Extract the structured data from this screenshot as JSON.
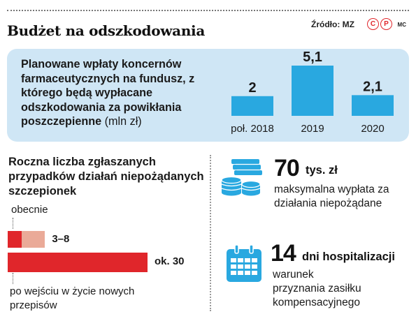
{
  "header": {
    "title": "Budżet na odszkodowania",
    "source": "Źródło: MZ",
    "copyright_marks": [
      "C",
      "P"
    ],
    "author": "MC"
  },
  "panel": {
    "description": "Planowane wpłaty koncernów farmaceutycznych na fundusz, z którego będą wypłacane odszkodowania za powikłania poszczepienne",
    "unit": "(mln zł)"
  },
  "chart_data": [
    {
      "type": "bar",
      "categories": [
        "poł. 2018",
        "2019",
        "2020"
      ],
      "values": [
        2,
        5.1,
        2.1
      ],
      "value_labels": [
        "2",
        "5,1",
        "2,1"
      ],
      "unit": "mln zł",
      "bar_color": "#29a8e0"
    },
    {
      "type": "bar",
      "orientation": "horizontal",
      "title": "Roczna liczba zgłaszanych przypadków działań niepożądanych szczepionek",
      "categories": [
        "obecnie",
        "po wejściu w życie nowych przepisów"
      ],
      "series_ranges": [
        [
          3,
          8
        ],
        [
          30,
          30
        ]
      ],
      "value_labels": [
        "3–8",
        "ok. 30"
      ],
      "colors": {
        "main": "#e0262b",
        "range": "#eaaa98"
      }
    }
  ],
  "left_section": {
    "title": "Roczna liczba zgłaszanych przypadków działań niepożądanych szczepionek",
    "label_now": "obecnie",
    "label_after": "po wejściu w życie nowych przepisów"
  },
  "facts": [
    {
      "number": "70",
      "unit": "tys. zł",
      "description": "maksymalna wypłata za działania niepożądane",
      "icon": "coins-banknotes-icon"
    },
    {
      "number": "14",
      "unit": "dni hospitalizacji",
      "description": "warunek przyznania zasiłku kompensacyjnego",
      "icon": "calendar-icon"
    }
  ],
  "colors": {
    "panel_bg": "#cfe6f5",
    "accent_blue": "#29a8e0",
    "accent_red": "#e0262b",
    "light_red": "#eaaa98"
  }
}
